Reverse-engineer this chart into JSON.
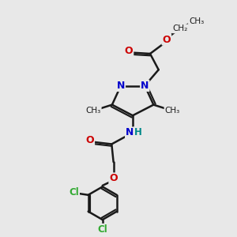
{
  "bg_color": "#e8e8e8",
  "bond_color": "#1a1a1a",
  "bond_width": 1.8,
  "atom_colors": {
    "N": "#0000cc",
    "O": "#cc0000",
    "Cl": "#33aa33",
    "H": "#008888",
    "C": "#1a1a1a"
  },
  "font_size": 9,
  "font_size_small": 7.5,
  "xlim": [
    0,
    10
  ],
  "ylim": [
    0,
    10
  ]
}
